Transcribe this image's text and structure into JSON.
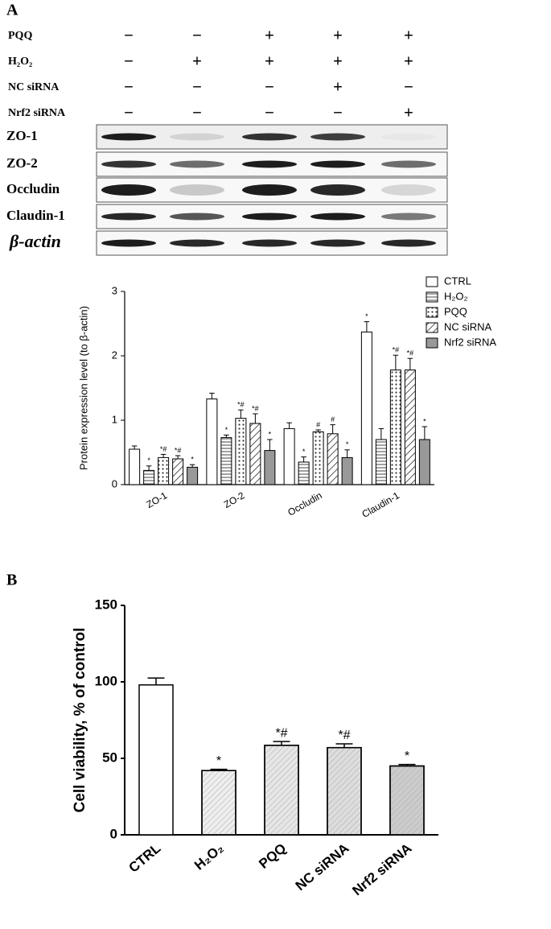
{
  "blot": {
    "panel": "A",
    "treatments": [
      {
        "label": "PQQ",
        "signs": [
          "−",
          "−",
          "+",
          "+",
          "+"
        ]
      },
      {
        "label": "H₂O₂",
        "signs": [
          "−",
          "+",
          "+",
          "+",
          "+"
        ]
      },
      {
        "label": "NC siRNA",
        "signs": [
          "−",
          "−",
          "−",
          "+",
          "−"
        ]
      },
      {
        "label": "Nrf2 siRNA",
        "signs": [
          "−",
          "−",
          "−",
          "−",
          "+"
        ]
      }
    ],
    "bands": [
      "ZO-1",
      "ZO-2",
      "Occludin",
      "Claudin-1",
      "β-actin"
    ]
  },
  "chart_data": [
    {
      "type": "bar",
      "ylabel": "Protein expression level (to β-actin)",
      "categories": [
        "ZO-1",
        "ZO-2",
        "Occludin",
        "Claudin-1"
      ],
      "series": [
        {
          "name": "CTRL",
          "color": "#ffffff",
          "pattern": "none",
          "values": [
            0.55,
            1.33,
            0.87,
            2.37
          ],
          "errors": [
            0.05,
            0.09,
            0.09,
            0.16
          ],
          "annotations": [
            null,
            null,
            null,
            "*"
          ]
        },
        {
          "name": "H₂O₂",
          "color": "#ffffff",
          "pattern": "horizontal",
          "values": [
            0.22,
            0.73,
            0.35,
            0.7
          ],
          "errors": [
            0.07,
            0.04,
            0.08,
            0.17
          ],
          "annotations": [
            "*",
            "*",
            "*",
            null
          ]
        },
        {
          "name": "PQQ",
          "color": "#ffffff",
          "pattern": "dots",
          "values": [
            0.42,
            1.03,
            0.82,
            1.78
          ],
          "errors": [
            0.05,
            0.13,
            0.03,
            0.23
          ],
          "annotations": [
            "*#",
            "*#",
            "#",
            "*#"
          ]
        },
        {
          "name": "NC siRNA",
          "color": "#ffffff",
          "pattern": "diagonal",
          "values": [
            0.4,
            0.95,
            0.79,
            1.78
          ],
          "errors": [
            0.05,
            0.15,
            0.14,
            0.18
          ],
          "annotations": [
            "*#",
            "*#",
            "#",
            "*#"
          ]
        },
        {
          "name": "Nrf2 siRNA",
          "color": "#999999",
          "pattern": "none",
          "values": [
            0.27,
            0.53,
            0.42,
            0.7
          ],
          "errors": [
            0.04,
            0.17,
            0.12,
            0.2
          ],
          "annotations": [
            "*",
            "*",
            "*",
            "*"
          ]
        }
      ],
      "ylim": [
        0,
        3
      ],
      "yticks": [
        0,
        1,
        2,
        3
      ],
      "legend": "top-right"
    },
    {
      "type": "bar",
      "panel": "B",
      "ylabel": "Cell viability, % of control",
      "categories": [
        "CTRL",
        "H₂O₂",
        "PQQ",
        "NC siRNA",
        "Nrf2 siRNA"
      ],
      "values": [
        98,
        42,
        58.5,
        57,
        45
      ],
      "errors": [
        4.5,
        0.8,
        2.5,
        2.5,
        1
      ],
      "annotations": [
        null,
        "*",
        "*#",
        "*#",
        "*"
      ],
      "colors": [
        "#ffffff",
        "#eeeeee",
        "#e6e6e6",
        "#dddddd",
        "#cccccc"
      ],
      "patterns": [
        "none",
        "diagonal",
        "diagonal",
        "diagonal",
        "diagonal"
      ],
      "ylim": [
        0,
        150
      ],
      "yticks": [
        0,
        50,
        100,
        150
      ]
    }
  ]
}
